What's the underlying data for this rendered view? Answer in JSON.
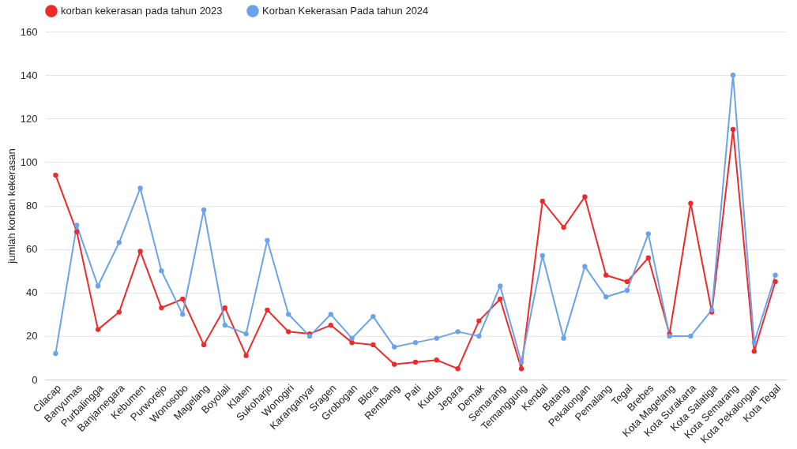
{
  "chart_data": {
    "type": "line",
    "ylabel": "jumlah korban kekerasan",
    "categories": [
      "Cilacap",
      "Banyumas",
      "Purbalingga",
      "Banjarnegara",
      "Kebumen",
      "Purworejo",
      "Wonosobo",
      "Magelang",
      "Boyolali",
      "Klaten",
      "Sukoharjo",
      "Wonogiri",
      "Karanganyar",
      "Sragen",
      "Grobogan",
      "Blora",
      "Rembang",
      "Pati",
      "Kudus",
      "Jepara",
      "Demak",
      "Semarang",
      "Temanggung",
      "Kendal",
      "Batang",
      "Pekalongan",
      "Pemalang",
      "Tegal",
      "Brebes",
      "Kota Magelang",
      "Kota Surakarta",
      "Kota Salatiga",
      "Kota Semarang",
      "Kota Pekalongan",
      "Kota Tegal"
    ],
    "series": [
      {
        "name": "korban kekerasan pada tahun 2023",
        "color": "#ee2a2a",
        "values": [
          94,
          68,
          23,
          31,
          59,
          33,
          37,
          16,
          33,
          11,
          32,
          22,
          21,
          25,
          17,
          16,
          7,
          8,
          9,
          5,
          27,
          37,
          5,
          82,
          70,
          84,
          48,
          45,
          56,
          21,
          81,
          31,
          115,
          13,
          45
        ]
      },
      {
        "name": "Korban Kekerasan Pada tahun 2024",
        "color": "#6aa3ea",
        "values": [
          12,
          71,
          43,
          63,
          88,
          50,
          30,
          78,
          25,
          21,
          64,
          30,
          20,
          30,
          19,
          29,
          15,
          17,
          19,
          22,
          20,
          43,
          8,
          57,
          19,
          52,
          38,
          41,
          67,
          20,
          20,
          32,
          140,
          17,
          48
        ]
      }
    ],
    "ylim": [
      0,
      160
    ],
    "yticks": [
      0,
      20,
      40,
      60,
      80,
      100,
      120,
      140,
      160
    ],
    "grid": "y",
    "legend": "top",
    "marker": "circle",
    "line_style": "solid"
  }
}
